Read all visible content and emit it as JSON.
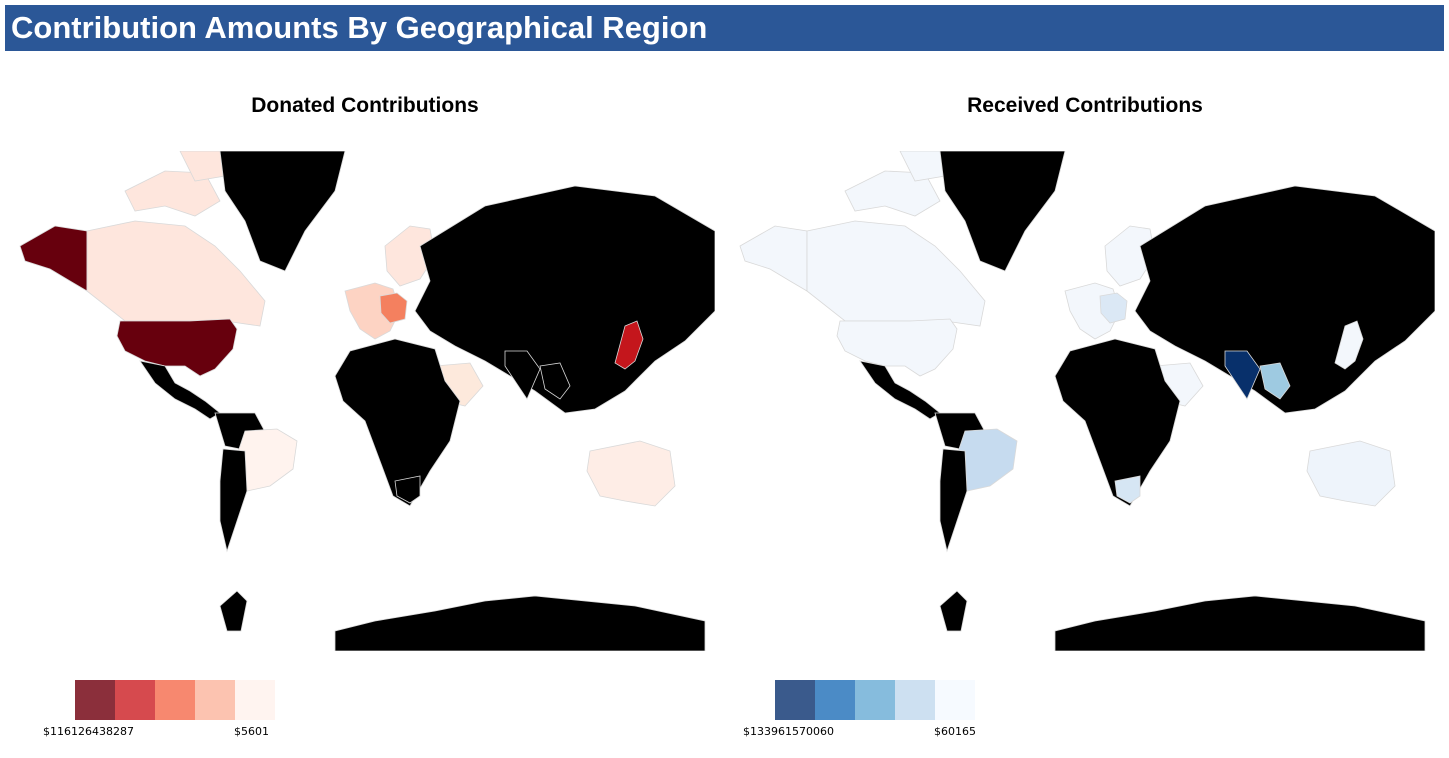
{
  "header": {
    "title": "Contribution Amounts By Geographical Region",
    "background": "#2b5797"
  },
  "maps": [
    {
      "id": "donated",
      "title": "Donated Contributions",
      "no_data_color": "#000000",
      "border_color": "#d9d9d9",
      "legend": {
        "colors": [
          "#8b2f3b",
          "#d64a4e",
          "#f7886f",
          "#fcc3b0",
          "#fff4f0"
        ],
        "max_label": "$116126438287",
        "min_label": "$5601"
      },
      "regions": {
        "north_america_us": "#67000d",
        "alaska": "#67000d",
        "canada": "#fee6dd",
        "mexico_central": "#000000",
        "south_america": "#000000",
        "brazil_region": "#fff3ee",
        "chile_argentina": "#000000",
        "western_europe": "#fdd3c3",
        "germany": "#f4805f",
        "scandinavia": "#fee6dd",
        "russia_asia": "#000000",
        "africa": "#000000",
        "middle_east": "#fde9dc",
        "japan": "#c4161c",
        "australia": "#feede6",
        "greenland": "#000000",
        "antarctica": "#000000",
        "arctic_islands": "#fee6dd"
      }
    },
    {
      "id": "received",
      "title": "Received Contributions",
      "no_data_color": "#000000",
      "border_color": "#d9d9d9",
      "legend": {
        "colors": [
          "#3a5a8c",
          "#4b8bc6",
          "#86bcdd",
          "#cde0f1",
          "#f6faff"
        ],
        "max_label": "$133961570060",
        "min_label": "$60165"
      },
      "regions": {
        "north_america_us": "#f3f7fc",
        "alaska": "#f3f7fc",
        "canada": "#f3f7fc",
        "mexico_central": "#000000",
        "south_america": "#000000",
        "brazil_region": "#c6dbef",
        "chile_argentina": "#000000",
        "western_europe": "#f3f7fc",
        "germany": "#dbe8f5",
        "scandinavia": "#f3f7fc",
        "russia_asia": "#000000",
        "india": "#08306b",
        "se_asia": "#9ecae1",
        "africa": "#000000",
        "south_africa": "#d6e6f4",
        "middle_east": "#f3f7fc",
        "japan": "#f3f7fc",
        "australia": "#eef4fb",
        "greenland": "#000000",
        "antarctica": "#000000",
        "arctic_islands": "#f3f7fc"
      }
    }
  ]
}
